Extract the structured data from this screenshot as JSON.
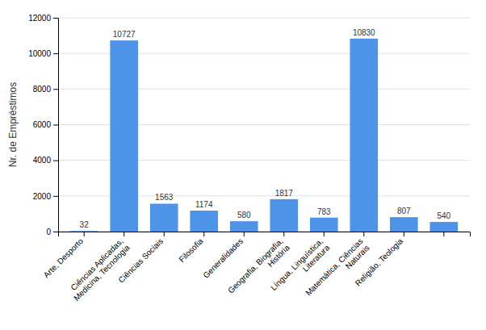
{
  "chart_data": {
    "type": "bar",
    "ylabel": "Nr. de Empréstimos",
    "categories": [
      "Arte, Desporto",
      "Ciências Aplicadas,\nMedicina, Tecnologia",
      "Ciências Sociais",
      "Filosofia",
      "Generalidades",
      "Geografia, Biografia,\nHistória",
      "Língua, Linguística,\nLiteratura",
      "Matemática, Ciências\nNaturais",
      "Religião, Teologia",
      null
    ],
    "values": [
      32,
      10727,
      1563,
      1174,
      580,
      1817,
      783,
      10830,
      807,
      540
    ],
    "color": "#4d94e8",
    "ylim": [
      0,
      12000
    ],
    "yticks": [
      0,
      2000,
      4000,
      6000,
      8000,
      10000,
      12000
    ],
    "grid": true,
    "data_labels": true
  }
}
